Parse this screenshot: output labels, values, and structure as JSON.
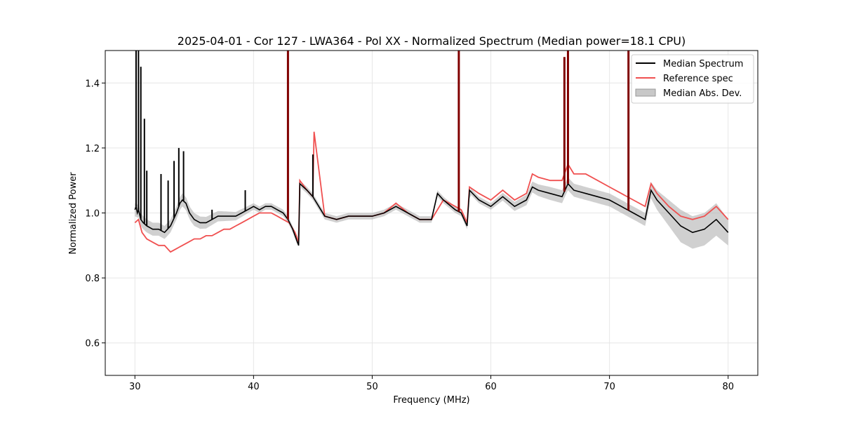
{
  "chart_data": {
    "type": "line",
    "title": "2025-04-01 - Cor 127 - LWA364 - Pol XX - Normalized Spectrum (Median power=18.1 CPU)",
    "xlabel": "Frequency (MHz)",
    "ylabel": "Normalized Power",
    "xlim": [
      27.5,
      82.5
    ],
    "ylim": [
      0.5,
      1.5
    ],
    "xticks": [
      30,
      40,
      50,
      60,
      70,
      80
    ],
    "yticks": [
      0.6,
      0.8,
      1.0,
      1.2,
      1.4
    ],
    "xtick_labels": [
      "30",
      "40",
      "50",
      "60",
      "70",
      "80"
    ],
    "ytick_labels": [
      "0.6",
      "0.8",
      "1.0",
      "1.2",
      "1.4"
    ],
    "grid": true,
    "legend_position": "top-right",
    "colors": {
      "median": "#000000",
      "reference": "#f05050",
      "overlap": "#800000",
      "mad_fill": "#b0b0b0"
    },
    "series": [
      {
        "name": "Median Spectrum",
        "style": "line",
        "x": [
          30.0,
          30.1,
          30.2,
          30.3,
          30.5,
          30.7,
          31,
          31.5,
          32,
          32.5,
          33,
          33.5,
          33.8,
          34,
          34.3,
          34.6,
          35,
          35.5,
          36,
          36.5,
          37,
          37.5,
          38,
          38.5,
          39,
          39.5,
          40,
          40.5,
          41,
          41.5,
          42,
          42.5,
          42.9,
          43.3,
          43.7,
          43.8,
          43.9,
          44.5,
          45,
          46,
          47,
          48,
          49,
          50,
          51,
          52,
          53,
          54,
          55,
          55.5,
          56,
          57,
          57.5,
          58,
          58.2,
          59,
          60,
          61,
          62,
          63,
          63.5,
          64,
          65,
          66,
          66.5,
          67,
          68,
          69,
          70,
          71,
          72,
          73,
          73.5,
          74,
          75,
          76,
          77,
          78,
          79,
          79.5,
          80
        ],
        "y": [
          1.01,
          1.02,
          1.0,
          1.01,
          0.98,
          0.97,
          0.96,
          0.95,
          0.95,
          0.94,
          0.96,
          1.0,
          1.03,
          1.04,
          1.03,
          1.0,
          0.98,
          0.97,
          0.97,
          0.98,
          0.99,
          0.99,
          0.99,
          0.99,
          1.0,
          1.01,
          1.02,
          1.01,
          1.02,
          1.02,
          1.01,
          1.0,
          0.98,
          0.95,
          0.91,
          0.9,
          1.09,
          1.07,
          1.05,
          0.99,
          0.98,
          0.99,
          0.99,
          0.99,
          1.0,
          1.02,
          1.0,
          0.98,
          0.98,
          1.06,
          1.04,
          1.01,
          1.0,
          0.96,
          1.07,
          1.04,
          1.02,
          1.05,
          1.02,
          1.04,
          1.08,
          1.07,
          1.06,
          1.05,
          1.09,
          1.07,
          1.06,
          1.05,
          1.04,
          1.02,
          1.0,
          0.98,
          1.07,
          1.04,
          1.0,
          0.96,
          0.94,
          0.95,
          0.98,
          0.96,
          0.94
        ],
        "spikes": [
          {
            "x": 30.1,
            "y_top": 1.5
          },
          {
            "x": 30.3,
            "y_top": 1.5
          },
          {
            "x": 30.5,
            "y_top": 1.45
          },
          {
            "x": 30.8,
            "y_top": 1.29
          },
          {
            "x": 31.0,
            "y_top": 1.13
          },
          {
            "x": 32.2,
            "y_top": 1.12
          },
          {
            "x": 32.8,
            "y_top": 1.1
          },
          {
            "x": 33.3,
            "y_top": 1.16
          },
          {
            "x": 33.7,
            "y_top": 1.2
          },
          {
            "x": 34.1,
            "y_top": 1.19
          },
          {
            "x": 36.5,
            "y_top": 1.01
          },
          {
            "x": 39.3,
            "y_top": 1.07
          },
          {
            "x": 42.9,
            "y_top": 1.5
          },
          {
            "x": 45.0,
            "y_top": 1.18
          },
          {
            "x": 57.3,
            "y_top": 1.5
          },
          {
            "x": 66.2,
            "y_top": 1.48
          },
          {
            "x": 66.5,
            "y_top": 1.5
          },
          {
            "x": 71.6,
            "y_top": 1.5
          }
        ]
      },
      {
        "name": "Reference spec",
        "style": "line",
        "x": [
          30.0,
          30.3,
          30.6,
          31,
          31.5,
          32,
          32.5,
          33,
          33.5,
          34,
          34.5,
          35,
          35.5,
          36,
          36.5,
          37,
          37.5,
          38,
          38.5,
          39,
          39.5,
          40,
          40.5,
          41,
          41.5,
          42,
          42.5,
          43,
          43.5,
          43.8,
          43.9,
          44.5,
          45,
          45.1,
          46,
          47,
          48,
          49,
          50,
          51,
          52,
          53,
          54,
          55,
          56,
          57,
          57.5,
          58,
          58.2,
          59,
          60,
          61,
          62,
          63,
          63.5,
          64,
          65,
          66,
          66.5,
          67,
          68,
          69,
          70,
          71,
          72,
          73,
          73.5,
          74,
          75,
          76,
          77,
          78,
          79,
          79.5,
          80
        ],
        "y": [
          0.97,
          0.98,
          0.94,
          0.92,
          0.91,
          0.9,
          0.9,
          0.88,
          0.89,
          0.9,
          0.91,
          0.92,
          0.92,
          0.93,
          0.93,
          0.94,
          0.95,
          0.95,
          0.96,
          0.97,
          0.98,
          0.99,
          1.0,
          1.0,
          1.0,
          0.99,
          0.98,
          0.97,
          0.94,
          0.91,
          1.1,
          1.07,
          1.05,
          1.25,
          0.99,
          0.98,
          0.99,
          0.99,
          0.99,
          1.0,
          1.03,
          1.0,
          0.98,
          0.98,
          1.04,
          1.02,
          1.01,
          0.97,
          1.08,
          1.06,
          1.04,
          1.07,
          1.04,
          1.06,
          1.12,
          1.11,
          1.1,
          1.1,
          1.15,
          1.12,
          1.12,
          1.1,
          1.08,
          1.06,
          1.04,
          1.02,
          1.09,
          1.06,
          1.02,
          0.99,
          0.98,
          0.99,
          1.02,
          1.0,
          0.98
        ]
      },
      {
        "name": "Median Abs. Dev.",
        "style": "fill",
        "x": [
          30,
          35,
          40,
          45,
          50,
          55,
          60,
          65,
          70,
          73,
          74,
          75,
          76,
          77,
          78,
          79,
          80
        ],
        "spread": [
          0.02,
          0.02,
          0.01,
          0.01,
          0.01,
          0.01,
          0.01,
          0.02,
          0.02,
          0.02,
          0.03,
          0.04,
          0.05,
          0.05,
          0.05,
          0.05,
          0.04
        ]
      }
    ]
  }
}
